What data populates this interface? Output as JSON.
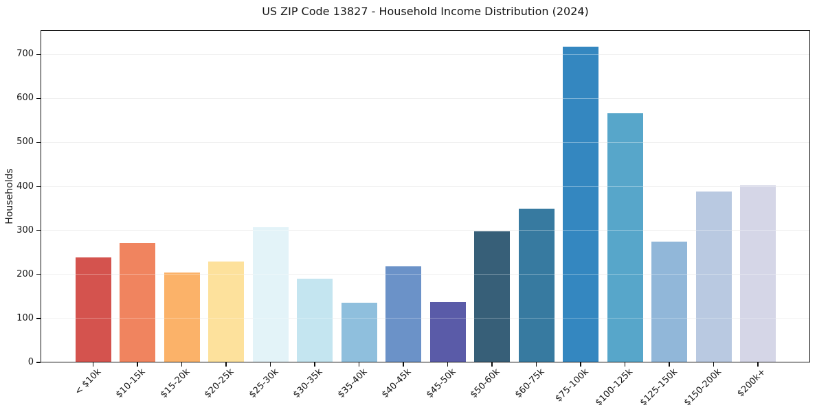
{
  "chart_data": {
    "type": "bar",
    "title": "US ZIP Code 13827 - Household Income Distribution (2024)",
    "ylabel": "Households",
    "xlabel": "",
    "categories": [
      "< $10k",
      "$10-15k",
      "$15-20k",
      "$20-25k",
      "$25-30k",
      "$30-35k",
      "$35-40k",
      "$40-45k",
      "$45-50k",
      "$50-60k",
      "$60-75k",
      "$75-100k",
      "$100-125k",
      "$125-150k",
      "$150-200k",
      "$200k+"
    ],
    "values": [
      238,
      272,
      205,
      230,
      308,
      191,
      136,
      219,
      138,
      298,
      350,
      717,
      567,
      275,
      388,
      403
    ],
    "bar_colors": [
      "#d4534e",
      "#f0845f",
      "#fbb269",
      "#fde19c",
      "#e3f3f8",
      "#c4e5f0",
      "#8fbfdd",
      "#6b92c8",
      "#5a5ba8",
      "#375f78",
      "#377aa0",
      "#3487c0",
      "#57a6ca",
      "#91b7d9",
      "#b9c9e1",
      "#d5d6e7"
    ],
    "yticks": [
      0,
      100,
      200,
      300,
      400,
      500,
      600,
      700
    ],
    "ylim": [
      0,
      755
    ],
    "grid": "horizontal",
    "legend": "none",
    "x_tick_rotation_deg": 45,
    "colors": {
      "axis": "#0d0d0d",
      "grid": "#e8e8e8",
      "text": "#161616",
      "background": "#ffffff"
    }
  }
}
